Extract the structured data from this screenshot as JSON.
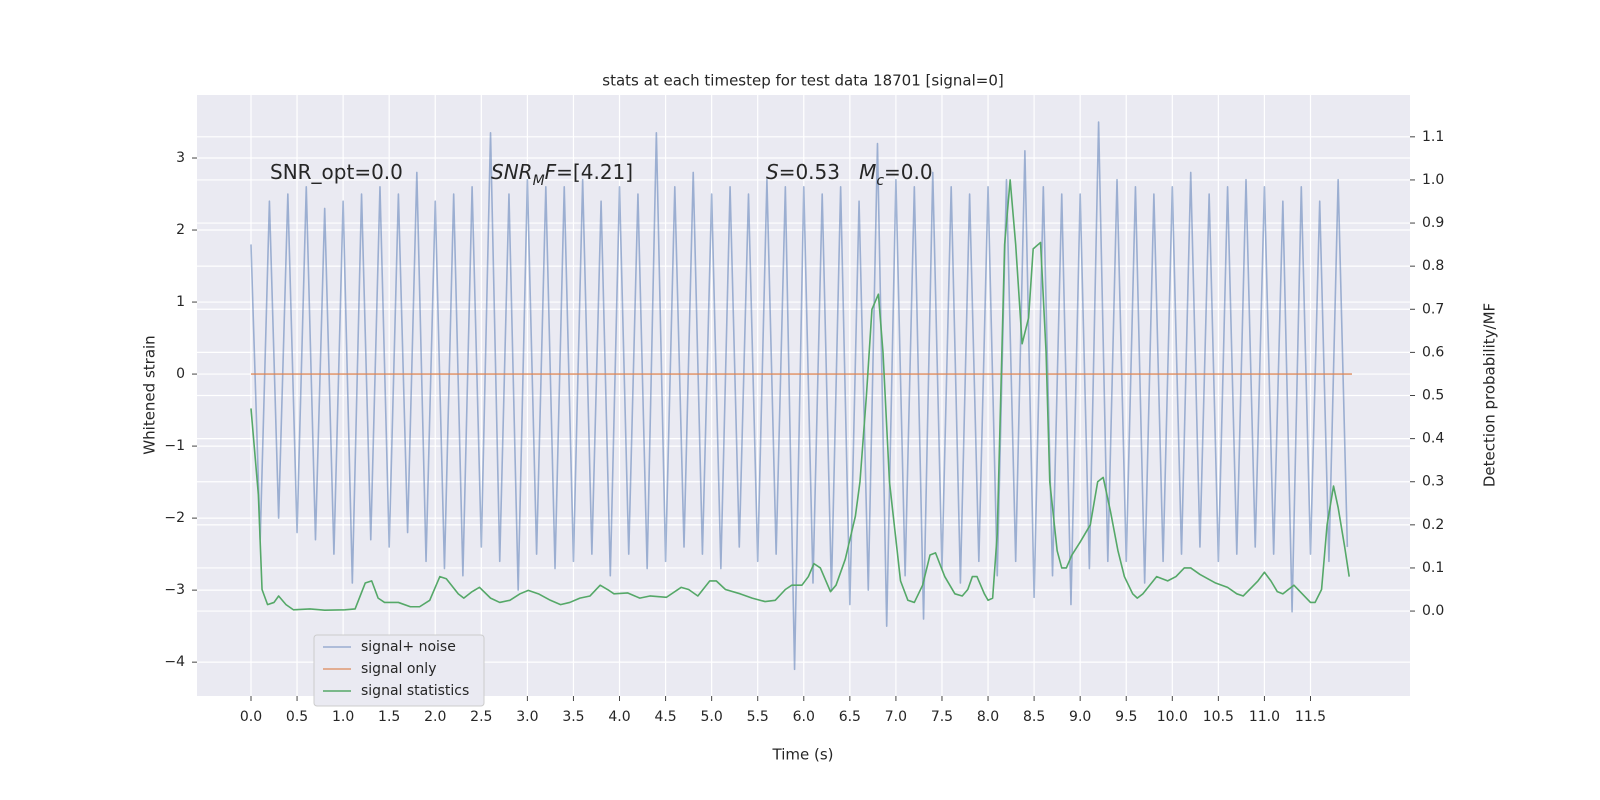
{
  "chart_data": {
    "type": "line",
    "title": "stats at each timestep for test data 18701 [signal=0]",
    "xlabel": "Time (s)",
    "ylabel": "Whitened strain",
    "y2label": "Detection probability/MF",
    "annotations": [
      [
        {
          "text": "SNR_opt=0.0"
        }
      ],
      [
        {
          "text": "SNR",
          "italic": true
        },
        {
          "text": "M",
          "italic": true,
          "sub": true
        },
        {
          "text": "F",
          "italic": true
        },
        {
          "text": "=[4.21]"
        }
      ],
      [
        {
          "text": "S",
          "italic": true
        },
        {
          "text": "=0.53   "
        },
        {
          "text": "M",
          "italic": true
        },
        {
          "text": "c",
          "italic": true,
          "sub": true
        },
        {
          "text": "=0.0"
        }
      ]
    ],
    "xlim": [
      -0.586,
      12.58
    ],
    "ylim": [
      -4.47,
      3.875
    ],
    "y2lim": [
      -0.197,
      1.197
    ],
    "xticks": [
      {
        "value": 0,
        "label": "0.0"
      },
      {
        "value": 0.5,
        "label": "0.5"
      },
      {
        "value": 1,
        "label": "1.0"
      },
      {
        "value": 1.5,
        "label": "1.5"
      },
      {
        "value": 2,
        "label": "2.0"
      },
      {
        "value": 2.5,
        "label": "2.5"
      },
      {
        "value": 3,
        "label": "3.0"
      },
      {
        "value": 3.5,
        "label": "3.5"
      },
      {
        "value": 4,
        "label": "4.0"
      },
      {
        "value": 4.5,
        "label": "4.5"
      },
      {
        "value": 5,
        "label": "5.0"
      },
      {
        "value": 5.5,
        "label": "5.5"
      },
      {
        "value": 6,
        "label": "6.0"
      },
      {
        "value": 6.5,
        "label": "6.5"
      },
      {
        "value": 7,
        "label": "7.0"
      },
      {
        "value": 7.5,
        "label": "7.5"
      },
      {
        "value": 8,
        "label": "8.0"
      },
      {
        "value": 8.5,
        "label": "8.5"
      },
      {
        "value": 9,
        "label": "9.0"
      },
      {
        "value": 9.5,
        "label": "9.5"
      },
      {
        "value": 10,
        "label": "10.0"
      },
      {
        "value": 10.5,
        "label": "10.5"
      },
      {
        "value": 11,
        "label": "11.0"
      },
      {
        "value": 11.5,
        "label": "11.5"
      }
    ],
    "yticks": [
      {
        "value": -4,
        "label": "−4"
      },
      {
        "value": -3,
        "label": "−3"
      },
      {
        "value": -2,
        "label": "−2"
      },
      {
        "value": -1,
        "label": "−1"
      },
      0,
      1,
      2,
      3
    ],
    "y2ticks": [
      {
        "value": 0,
        "label": "0.0"
      },
      {
        "value": 0.1,
        "label": "0.1"
      },
      {
        "value": 0.2,
        "label": "0.2"
      },
      {
        "value": 0.3,
        "label": "0.3"
      },
      {
        "value": 0.4,
        "label": "0.4"
      },
      {
        "value": 0.5,
        "label": "0.5"
      },
      {
        "value": 0.6,
        "label": "0.6"
      },
      {
        "value": 0.7,
        "label": "0.7"
      },
      {
        "value": 0.8,
        "label": "0.8"
      },
      {
        "value": 0.9,
        "label": "0.9"
      },
      {
        "value": 1,
        "label": "1.0"
      },
      {
        "value": 1.1,
        "label": "1.1"
      }
    ],
    "grid": true,
    "legend": "lower left",
    "series": [
      {
        "name": "signal+ noise",
        "color": "#4c72b0",
        "opacity": 0.5,
        "x": [
          0,
          0.1,
          0.2,
          0.3,
          0.4,
          0.5,
          0.6,
          0.7,
          0.8,
          0.9,
          1,
          1.1,
          1.2,
          1.3,
          1.4,
          1.5,
          1.6,
          1.7,
          1.8,
          1.9,
          2,
          2.1,
          2.2,
          2.3,
          2.4,
          2.5,
          2.6,
          2.7,
          2.8,
          2.9,
          3,
          3.1,
          3.2,
          3.3,
          3.4,
          3.5,
          3.6,
          3.7,
          3.8,
          3.9,
          4,
          4.1,
          4.2,
          4.3,
          4.4,
          4.5,
          4.6,
          4.7,
          4.8,
          4.9,
          5,
          5.1,
          5.2,
          5.3,
          5.4,
          5.5,
          5.6,
          5.7,
          5.8,
          5.9,
          6,
          6.1,
          6.2,
          6.3,
          6.4,
          6.5,
          6.6,
          6.7,
          6.8,
          6.9,
          7,
          7.1,
          7.2,
          7.3,
          7.4,
          7.5,
          7.6,
          7.7,
          7.8,
          7.9,
          8,
          8.1,
          8.2,
          8.3,
          8.4,
          8.5,
          8.6,
          8.7,
          8.8,
          8.9,
          9,
          9.1,
          9.2,
          9.3,
          9.4,
          9.5,
          9.6,
          9.7,
          9.8,
          9.9,
          10,
          10.1,
          10.2,
          10.3,
          10.4,
          10.5,
          10.6,
          10.7,
          10.8,
          10.9,
          11,
          11.1,
          11.2,
          11.3,
          11.4,
          11.5,
          11.6,
          11.7,
          11.8,
          11.9
        ],
        "values": [
          1.8,
          -2.3,
          2.4,
          -2.0,
          2.5,
          -2.2,
          2.6,
          -2.3,
          2.3,
          -2.5,
          2.4,
          -2.9,
          2.5,
          -2.3,
          2.6,
          -2.4,
          2.5,
          -2.2,
          2.8,
          -2.6,
          2.4,
          -2.7,
          2.5,
          -2.8,
          2.6,
          -2.4,
          3.35,
          -2.6,
          2.5,
          -3.0,
          2.7,
          -2.5,
          2.6,
          -2.7,
          2.6,
          -2.6,
          2.7,
          -2.5,
          2.4,
          -2.8,
          2.6,
          -2.5,
          2.5,
          -2.7,
          3.35,
          -2.6,
          2.6,
          -2.4,
          2.8,
          -2.5,
          2.5,
          -2.7,
          2.6,
          -2.4,
          2.5,
          -2.6,
          2.7,
          -2.5,
          2.6,
          -4.1,
          2.6,
          -2.9,
          2.5,
          -3.0,
          2.6,
          -3.2,
          2.4,
          -3.0,
          3.2,
          -3.5,
          2.7,
          -2.8,
          2.6,
          -3.4,
          2.8,
          -2.7,
          2.6,
          -2.9,
          2.5,
          -2.6,
          2.6,
          -2.8,
          2.7,
          -2.6,
          3.1,
          -3.1,
          2.6,
          -2.8,
          2.5,
          -3.2,
          2.5,
          -2.7,
          3.5,
          -2.6,
          2.7,
          -2.6,
          2.6,
          -2.9,
          2.5,
          -2.6,
          2.6,
          -2.5,
          2.8,
          -2.4,
          2.5,
          -2.6,
          2.6,
          -2.5,
          2.7,
          -2.4,
          2.6,
          -2.5,
          2.4,
          -3.3,
          2.6,
          -2.5,
          2.4,
          -2.6,
          2.7,
          -2.4
        ]
      },
      {
        "name": "signal only",
        "color": "#dd8452",
        "opacity": 0.8,
        "x": [
          0,
          11.95
        ],
        "values": [
          0,
          0
        ]
      },
      {
        "name": "signal statistics",
        "color": "#55a868",
        "axis": "y2",
        "x": [
          0,
          0.08,
          0.12,
          0.18,
          0.25,
          0.3,
          0.38,
          0.46,
          0.64,
          0.8,
          1.02,
          1.13,
          1.24,
          1.31,
          1.38,
          1.45,
          1.6,
          1.73,
          1.83,
          1.94,
          2.05,
          2.12,
          2.25,
          2.31,
          2.4,
          2.48,
          2.6,
          2.7,
          2.81,
          2.92,
          3.01,
          3.12,
          3.25,
          3.36,
          3.46,
          3.57,
          3.68,
          3.79,
          3.87,
          3.94,
          4.09,
          4.22,
          4.33,
          4.51,
          4.67,
          4.75,
          4.85,
          4.98,
          5.05,
          5.15,
          5.31,
          5.44,
          5.58,
          5.69,
          5.8,
          5.87,
          5.98,
          6.05,
          6.11,
          6.18,
          6.29,
          6.35,
          6.45,
          6.56,
          6.61,
          6.68,
          6.74,
          6.81,
          6.86,
          6.93,
          7.05,
          7.13,
          7.2,
          7.29,
          7.37,
          7.43,
          7.53,
          7.64,
          7.72,
          7.78,
          7.83,
          7.88,
          7.96,
          8.0,
          8.05,
          8.1,
          8.18,
          8.24,
          8.3,
          8.37,
          8.44,
          8.49,
          8.57,
          8.63,
          8.67,
          8.75,
          8.8,
          8.85,
          8.91,
          9.0,
          9.11,
          9.19,
          9.25,
          9.33,
          9.41,
          9.48,
          9.57,
          9.62,
          9.68,
          9.83,
          9.95,
          10.04,
          10.13,
          10.2,
          10.3,
          10.47,
          10.6,
          10.7,
          10.77,
          10.93,
          11.0,
          11.07,
          11.14,
          11.2,
          11.26,
          11.32,
          11.41,
          11.5,
          11.55,
          11.62,
          11.68,
          11.75,
          11.8,
          11.87,
          11.92
        ],
        "values": [
          0.47,
          0.27,
          0.05,
          0.015,
          0.02,
          0.035,
          0.015,
          0.003,
          0.005,
          0.002,
          0.003,
          0.005,
          0.065,
          0.07,
          0.03,
          0.02,
          0.02,
          0.01,
          0.01,
          0.025,
          0.08,
          0.075,
          0.04,
          0.03,
          0.045,
          0.055,
          0.03,
          0.02,
          0.025,
          0.04,
          0.048,
          0.04,
          0.025,
          0.015,
          0.02,
          0.03,
          0.035,
          0.06,
          0.05,
          0.04,
          0.042,
          0.03,
          0.035,
          0.032,
          0.055,
          0.05,
          0.035,
          0.07,
          0.07,
          0.05,
          0.04,
          0.03,
          0.022,
          0.025,
          0.05,
          0.06,
          0.06,
          0.08,
          0.11,
          0.1,
          0.045,
          0.06,
          0.12,
          0.22,
          0.3,
          0.5,
          0.7,
          0.735,
          0.6,
          0.3,
          0.07,
          0.025,
          0.02,
          0.06,
          0.13,
          0.135,
          0.08,
          0.04,
          0.035,
          0.05,
          0.08,
          0.08,
          0.04,
          0.025,
          0.03,
          0.18,
          0.85,
          1.0,
          0.85,
          0.62,
          0.68,
          0.84,
          0.855,
          0.6,
          0.3,
          0.14,
          0.1,
          0.1,
          0.13,
          0.16,
          0.2,
          0.3,
          0.31,
          0.23,
          0.14,
          0.08,
          0.04,
          0.03,
          0.04,
          0.08,
          0.07,
          0.08,
          0.1,
          0.1,
          0.085,
          0.065,
          0.055,
          0.04,
          0.035,
          0.07,
          0.09,
          0.07,
          0.045,
          0.04,
          0.05,
          0.06,
          0.04,
          0.02,
          0.02,
          0.05,
          0.2,
          0.29,
          0.24,
          0.15,
          0.08
        ]
      }
    ]
  }
}
